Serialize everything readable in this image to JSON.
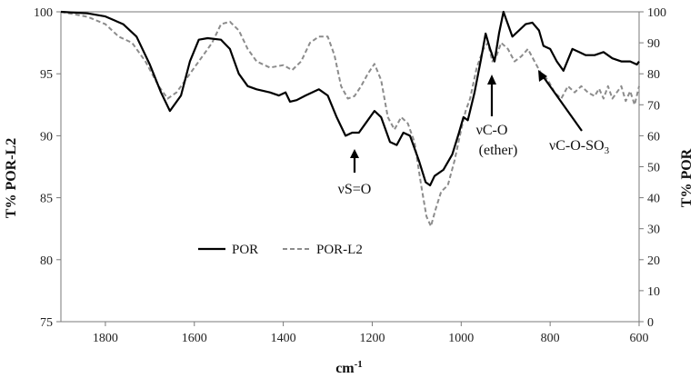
{
  "chart_data": {
    "type": "line",
    "title": "",
    "xlabel": "cm",
    "xlabel_sup": "-1",
    "ylabel_left": "T% POR-L2",
    "ylabel_right": "T% POR",
    "xlim": [
      1900,
      600
    ],
    "ylim_left": [
      75,
      100
    ],
    "ylim_right": [
      0,
      100
    ],
    "x_ticks": [
      1800,
      1600,
      1400,
      1200,
      1000,
      800,
      600
    ],
    "y_left_ticks": [
      75,
      80,
      85,
      90,
      95,
      100
    ],
    "y_right_ticks": [
      0,
      10,
      20,
      30,
      40,
      50,
      60,
      70,
      80,
      90,
      100
    ],
    "grid": false,
    "legend": {
      "placement": "center-left",
      "entries": [
        "POR",
        "POR-L2"
      ]
    },
    "annotations": [
      {
        "text": "νS=O"
      },
      {
        "text": "νC-O"
      },
      {
        "text": "(ether)"
      },
      {
        "text": "νC-O-SO",
        "sub": "3"
      }
    ],
    "series": [
      {
        "name": "POR",
        "axis": "right",
        "color": "#000000",
        "style": "solid",
        "points": [
          [
            1900,
            100
          ],
          [
            1840,
            99.5
          ],
          [
            1800,
            98.5
          ],
          [
            1760,
            96
          ],
          [
            1730,
            92
          ],
          [
            1700,
            83
          ],
          [
            1675,
            74
          ],
          [
            1655,
            68
          ],
          [
            1630,
            73
          ],
          [
            1610,
            84
          ],
          [
            1590,
            91
          ],
          [
            1570,
            91.5
          ],
          [
            1540,
            91
          ],
          [
            1520,
            88
          ],
          [
            1500,
            80
          ],
          [
            1480,
            76
          ],
          [
            1460,
            75
          ],
          [
            1430,
            74
          ],
          [
            1410,
            73
          ],
          [
            1395,
            74
          ],
          [
            1385,
            71
          ],
          [
            1370,
            71.5
          ],
          [
            1350,
            73
          ],
          [
            1320,
            75
          ],
          [
            1300,
            73
          ],
          [
            1280,
            66
          ],
          [
            1260,
            60
          ],
          [
            1245,
            61
          ],
          [
            1230,
            61
          ],
          [
            1215,
            64
          ],
          [
            1195,
            68
          ],
          [
            1180,
            66
          ],
          [
            1160,
            58
          ],
          [
            1145,
            57
          ],
          [
            1130,
            61
          ],
          [
            1115,
            60
          ],
          [
            1095,
            52
          ],
          [
            1080,
            45
          ],
          [
            1070,
            44
          ],
          [
            1060,
            47
          ],
          [
            1040,
            49
          ],
          [
            1020,
            54
          ],
          [
            1005,
            61
          ],
          [
            995,
            66
          ],
          [
            985,
            65
          ],
          [
            970,
            74
          ],
          [
            955,
            85
          ],
          [
            945,
            93
          ],
          [
            935,
            88
          ],
          [
            925,
            84
          ],
          [
            915,
            93
          ],
          [
            905,
            100
          ],
          [
            895,
            96
          ],
          [
            885,
            92
          ],
          [
            870,
            94
          ],
          [
            855,
            96
          ],
          [
            840,
            96.5
          ],
          [
            825,
            94
          ],
          [
            815,
            89
          ],
          [
            800,
            88
          ],
          [
            785,
            84
          ],
          [
            770,
            81
          ],
          [
            750,
            88
          ],
          [
            735,
            87
          ],
          [
            720,
            86
          ],
          [
            700,
            86
          ],
          [
            680,
            87
          ],
          [
            660,
            85
          ],
          [
            640,
            84
          ],
          [
            620,
            84
          ],
          [
            605,
            83
          ],
          [
            600,
            84
          ]
        ]
      },
      {
        "name": "POR-L2",
        "axis": "left",
        "color": "#8c8c8c",
        "style": "dashed",
        "points": [
          [
            1900,
            100
          ],
          [
            1840,
            99.6
          ],
          [
            1800,
            99
          ],
          [
            1770,
            98
          ],
          [
            1740,
            97.5
          ],
          [
            1710,
            96
          ],
          [
            1680,
            94
          ],
          [
            1660,
            93
          ],
          [
            1640,
            93.5
          ],
          [
            1610,
            95
          ],
          [
            1580,
            96.5
          ],
          [
            1560,
            97.5
          ],
          [
            1540,
            99
          ],
          [
            1520,
            99.2
          ],
          [
            1500,
            98.5
          ],
          [
            1480,
            97
          ],
          [
            1460,
            96
          ],
          [
            1430,
            95.5
          ],
          [
            1400,
            95.7
          ],
          [
            1380,
            95.3
          ],
          [
            1360,
            96
          ],
          [
            1340,
            97.5
          ],
          [
            1320,
            98
          ],
          [
            1300,
            98
          ],
          [
            1285,
            96.5
          ],
          [
            1270,
            94
          ],
          [
            1255,
            93
          ],
          [
            1240,
            93.2
          ],
          [
            1225,
            94
          ],
          [
            1210,
            95
          ],
          [
            1195,
            95.8
          ],
          [
            1180,
            94.5
          ],
          [
            1165,
            91.5
          ],
          [
            1150,
            90.5
          ],
          [
            1135,
            91.5
          ],
          [
            1120,
            91
          ],
          [
            1105,
            89.5
          ],
          [
            1090,
            86
          ],
          [
            1078,
            83.5
          ],
          [
            1068,
            82.7
          ],
          [
            1058,
            84
          ],
          [
            1045,
            85.5
          ],
          [
            1030,
            86
          ],
          [
            1015,
            88
          ],
          [
            1000,
            90.5
          ],
          [
            990,
            92
          ],
          [
            980,
            93
          ],
          [
            965,
            95.5
          ],
          [
            950,
            97
          ],
          [
            940,
            97.5
          ],
          [
            930,
            96
          ],
          [
            920,
            96.5
          ],
          [
            910,
            97.5
          ],
          [
            895,
            97
          ],
          [
            880,
            96
          ],
          [
            865,
            96.4
          ],
          [
            850,
            97
          ],
          [
            835,
            96
          ],
          [
            820,
            95
          ],
          [
            805,
            94.5
          ],
          [
            790,
            93.5
          ],
          [
            775,
            93
          ],
          [
            760,
            94
          ],
          [
            745,
            93.5
          ],
          [
            730,
            94
          ],
          [
            715,
            93.5
          ],
          [
            700,
            93.2
          ],
          [
            690,
            93.8
          ],
          [
            680,
            93
          ],
          [
            670,
            94
          ],
          [
            660,
            93
          ],
          [
            650,
            93.5
          ],
          [
            640,
            94
          ],
          [
            630,
            92.8
          ],
          [
            620,
            93.6
          ],
          [
            610,
            92.5
          ],
          [
            600,
            94
          ]
        ]
      }
    ]
  }
}
